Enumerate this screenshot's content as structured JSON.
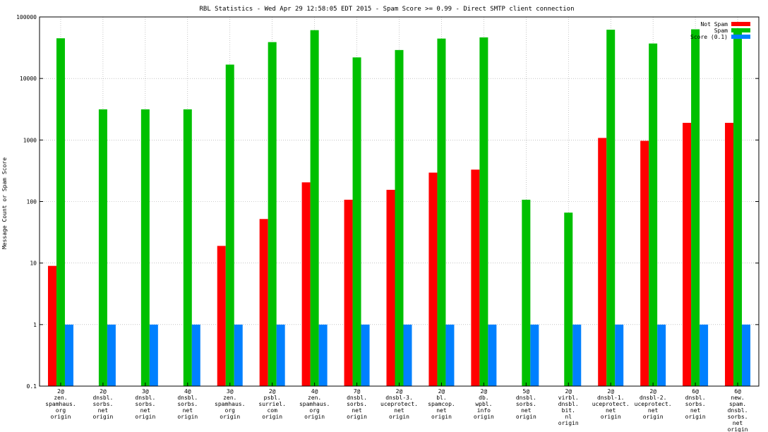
{
  "chart_data": {
    "type": "bar",
    "title": "RBL Statistics - Wed Apr 29 12:58:05 EDT 2015 - Spam Score >= 0.99 - Direct SMTP client connection",
    "ylabel": "Message Count or Spam Score",
    "xlabel": "",
    "yscale": "log",
    "ylim": [
      0.1,
      100000
    ],
    "yticks": [
      "0.1",
      "1",
      "10",
      "100",
      "1000",
      "10000",
      "100000"
    ],
    "grid": true,
    "legend_position": "top-right",
    "categories": [
      [
        "2@",
        "zen.",
        "spamhaus.",
        "org",
        "origin"
      ],
      [
        "2@",
        "dnsbl.",
        "sorbs.",
        "net",
        "origin"
      ],
      [
        "3@",
        "dnsbl.",
        "sorbs.",
        "net",
        "origin"
      ],
      [
        "4@",
        "dnsbl.",
        "sorbs.",
        "net",
        "origin"
      ],
      [
        "3@",
        "zen.",
        "spamhaus.",
        "org",
        "origin"
      ],
      [
        "2@",
        "psbl.",
        "surriel.",
        "com",
        "origin"
      ],
      [
        "4@",
        "zen.",
        "spamhaus.",
        "org",
        "origin"
      ],
      [
        "7@",
        "dnsbl.",
        "sorbs.",
        "net",
        "origin"
      ],
      [
        "2@",
        "dnsbl-3.",
        "uceprotect.",
        "net",
        "origin"
      ],
      [
        "2@",
        "bl.",
        "spamcop.",
        "net",
        "origin"
      ],
      [
        "2@",
        "db.",
        "wpbl.",
        "info",
        "origin"
      ],
      [
        "5@",
        "dnsbl.",
        "sorbs.",
        "net",
        "origin"
      ],
      [
        "2@",
        "virbl.",
        "dnsbl.",
        "bit.",
        "nl",
        "origin"
      ],
      [
        "2@",
        "dnsbl-1.",
        "uceprotect.",
        "net",
        "origin"
      ],
      [
        "2@",
        "dnsbl-2.",
        "uceprotect.",
        "net",
        "origin"
      ],
      [
        "6@",
        "dnsbl.",
        "sorbs.",
        "net",
        "origin"
      ],
      [
        "6@",
        "new.",
        "spam.",
        "dnsbl.",
        "sorbs.",
        "net",
        "origin"
      ]
    ],
    "series": [
      {
        "name": "Not Spam",
        "color": "#ff0000",
        "values": [
          9,
          null,
          null,
          null,
          19,
          52,
          205,
          107,
          155,
          295,
          330,
          null,
          null,
          1080,
          970,
          1900,
          1900
        ]
      },
      {
        "name": "Spam",
        "color": "#00c000",
        "values": [
          45000,
          3150,
          3150,
          3150,
          16800,
          39000,
          61000,
          22000,
          29000,
          44500,
          46500,
          107,
          66,
          62000,
          37000,
          63000,
          62000
        ]
      },
      {
        "name": "Score (0.1)",
        "color": "#0080ff",
        "values": [
          1,
          1,
          1,
          1,
          1,
          1,
          1,
          1,
          1,
          1,
          1,
          1,
          1,
          1,
          1,
          1,
          1
        ]
      }
    ]
  }
}
